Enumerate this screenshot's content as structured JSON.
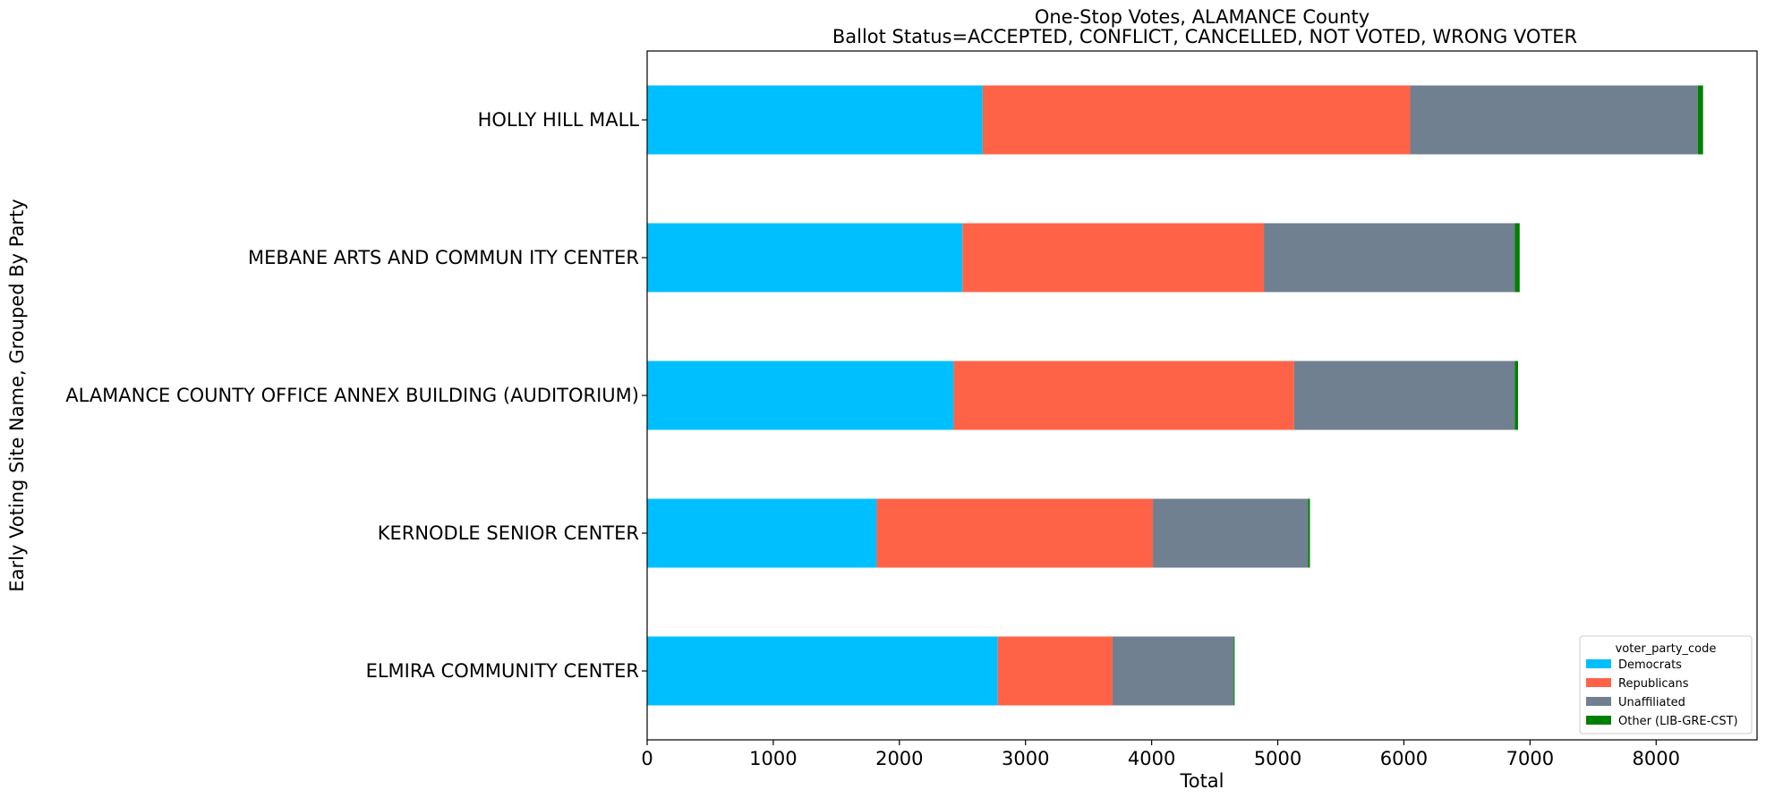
{
  "chart_data": {
    "type": "bar",
    "orientation": "horizontal",
    "stacked": true,
    "title": "One-Stop Votes, ALAMANCE County",
    "subtitle": "Ballot Status=ACCEPTED, CONFLICT, CANCELLED, NOT VOTED, WRONG VOTER",
    "xlabel": "Total",
    "ylabel": "Early Voting Site Name, Grouped By Party",
    "xlim": [
      0,
      8800
    ],
    "xticks": [
      0,
      1000,
      2000,
      3000,
      4000,
      5000,
      6000,
      7000,
      8000
    ],
    "grid": false,
    "legend_title": "voter_party_code",
    "legend_position": "lower-right",
    "categories": [
      "ELMIRA COMMUNITY CENTER",
      "KERNODLE SENIOR CENTER",
      "ALAMANCE COUNTY OFFICE ANNEX BUILDING (AUDITORIUM)",
      "MEBANE ARTS AND COMMUN ITY CENTER",
      "HOLLY HILL MALL"
    ],
    "series": [
      {
        "name": "Democrats",
        "color": "#00BFFF",
        "values": [
          2780,
          1820,
          2430,
          2500,
          2660
        ]
      },
      {
        "name": "Republicans",
        "color": "#FF6347",
        "values": [
          910,
          2190,
          2700,
          2390,
          3390
        ]
      },
      {
        "name": "Unaffiliated",
        "color": "#708090",
        "values": [
          960,
          1230,
          1750,
          1990,
          2280
        ]
      },
      {
        "name": "Other (LIB-GRE-CST)",
        "color": "#008000",
        "values": [
          8,
          15,
          25,
          38,
          42
        ]
      }
    ]
  }
}
